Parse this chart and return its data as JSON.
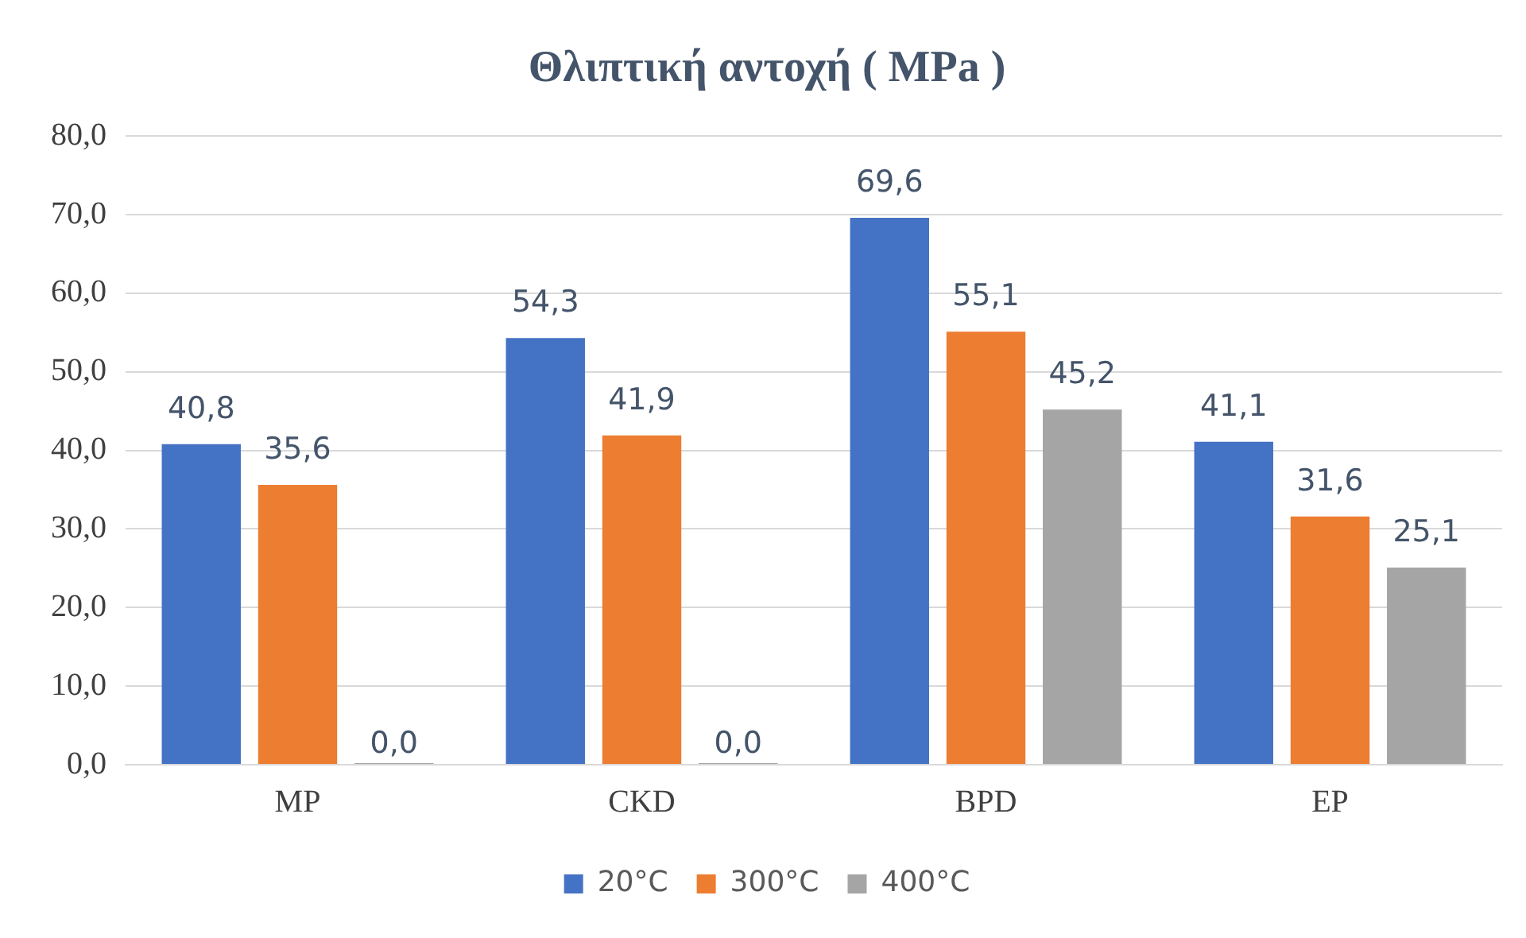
{
  "chart_data": {
    "type": "bar",
    "title": "Θλιπτική αντοχή ( MPa )",
    "categories": [
      "MP",
      "CKD",
      "BPD",
      "EP"
    ],
    "series": [
      {
        "name": "20°C",
        "color": "#4472c4",
        "values": [
          40.8,
          54.3,
          69.6,
          41.1
        ],
        "value_labels": [
          "40,8",
          "54,3",
          "69,6",
          "41,1"
        ]
      },
      {
        "name": "300°C",
        "color": "#ed7d31",
        "values": [
          35.6,
          41.9,
          55.1,
          31.6
        ],
        "value_labels": [
          "35,6",
          "41,9",
          "55,1",
          "31,6"
        ]
      },
      {
        "name": "400°C",
        "color": "#a5a5a5",
        "values": [
          0,
          0,
          45.2,
          25.1
        ],
        "value_labels": [
          "0,0",
          "0,0",
          "45,2",
          "25,1"
        ]
      }
    ],
    "ylim": [
      0,
      80
    ],
    "yticks": [
      {
        "value": 0,
        "label": "0,0"
      },
      {
        "value": 10,
        "label": "10,0"
      },
      {
        "value": 20,
        "label": "20,0"
      },
      {
        "value": 30,
        "label": "30,0"
      },
      {
        "value": 40,
        "label": "40,0"
      },
      {
        "value": 50,
        "label": "50,0"
      },
      {
        "value": 60,
        "label": "60,0"
      },
      {
        "value": 70,
        "label": "70,0"
      },
      {
        "value": 80,
        "label": "80,0"
      }
    ],
    "grid": "y",
    "legend": "bottom"
  }
}
